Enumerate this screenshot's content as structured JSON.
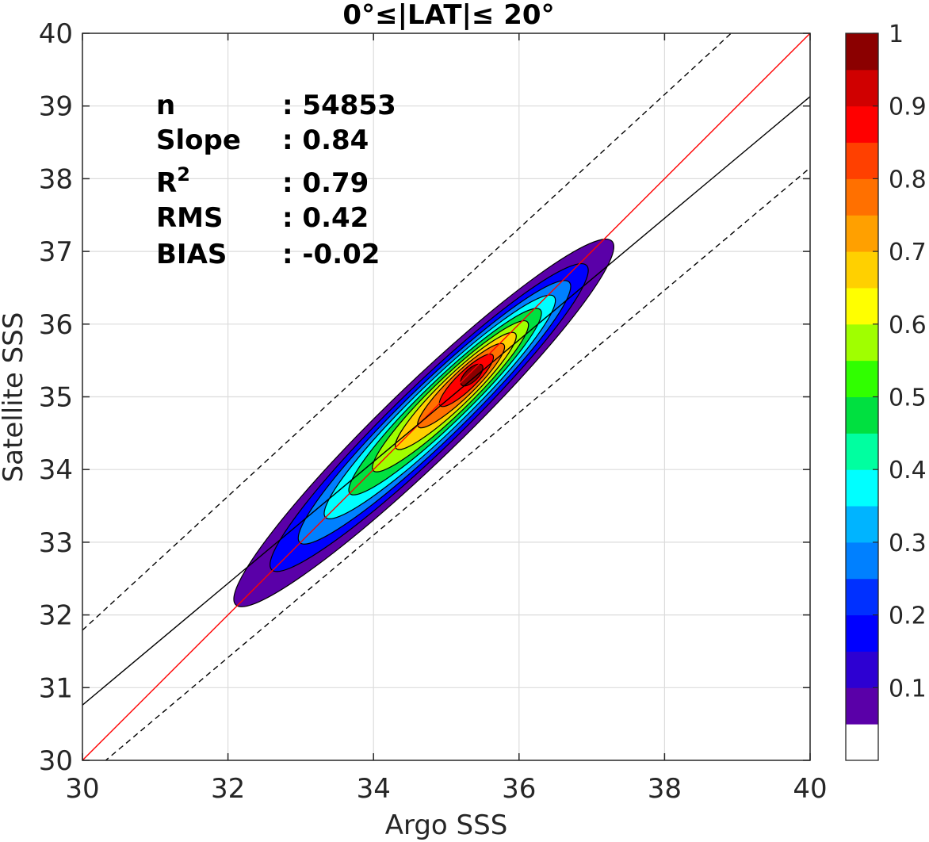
{
  "chart_data": {
    "type": "contour",
    "title": "0°≤|LAT|≤ 20°",
    "xlabel": "Argo SSS",
    "ylabel": "Satellite SSS",
    "xlim": [
      30,
      40
    ],
    "ylim": [
      30,
      40
    ],
    "xticks": [
      "30",
      "32",
      "34",
      "36",
      "38",
      "40"
    ],
    "yticks": [
      "30",
      "31",
      "32",
      "33",
      "34",
      "35",
      "36",
      "37",
      "38",
      "39",
      "40"
    ],
    "grid": true,
    "stats": [
      {
        "label": "n",
        "value": ": 54853"
      },
      {
        "label": "Slope",
        "value": ": 0.84"
      },
      {
        "label": "R",
        "sup": "2",
        "value": ": 0.79"
      },
      {
        "label": "RMS",
        "value": ": 0.42"
      },
      {
        "label": "BIAS",
        "value": ": -0.02"
      }
    ],
    "lines": [
      {
        "kind": "one-to-one",
        "color": "#ff0000",
        "style": "solid",
        "points": [
          [
            30,
            30
          ],
          [
            40,
            40
          ]
        ]
      },
      {
        "kind": "regression",
        "color": "#000000",
        "style": "solid",
        "points": [
          [
            30,
            30.76
          ],
          [
            40,
            39.13
          ]
        ]
      },
      {
        "kind": "upper-bound",
        "color": "#000000",
        "style": "dashed",
        "points": [
          [
            30,
            31.79
          ],
          [
            40,
            41.0
          ]
        ]
      },
      {
        "kind": "lower-bound",
        "color": "#000000",
        "style": "dashed",
        "points": [
          [
            30,
            29.73
          ],
          [
            40,
            38.15
          ]
        ]
      }
    ],
    "density_peak": [
      35.35,
      35.3
    ],
    "contour_levels": [
      0.05,
      0.15,
      0.25,
      0.35,
      0.45,
      0.55,
      0.65,
      0.75,
      0.85,
      0.95
    ],
    "colorbar": {
      "range": [
        0,
        1
      ],
      "tick_labels": [
        "0.1",
        "0.2",
        "0.3",
        "0.4",
        "0.5",
        "0.6",
        "0.7",
        "0.8",
        "0.9",
        "1"
      ],
      "colors": [
        "#ffffff",
        "#5a00a8",
        "#2d00d2",
        "#0000ff",
        "#0030ff",
        "#0080ff",
        "#00b4ff",
        "#00ffff",
        "#00ffa0",
        "#00e040",
        "#30ff00",
        "#a0ff00",
        "#ffff00",
        "#ffd000",
        "#ffa000",
        "#ff7000",
        "#ff4000",
        "#ff0000",
        "#d00000",
        "#8b0000"
      ]
    }
  }
}
